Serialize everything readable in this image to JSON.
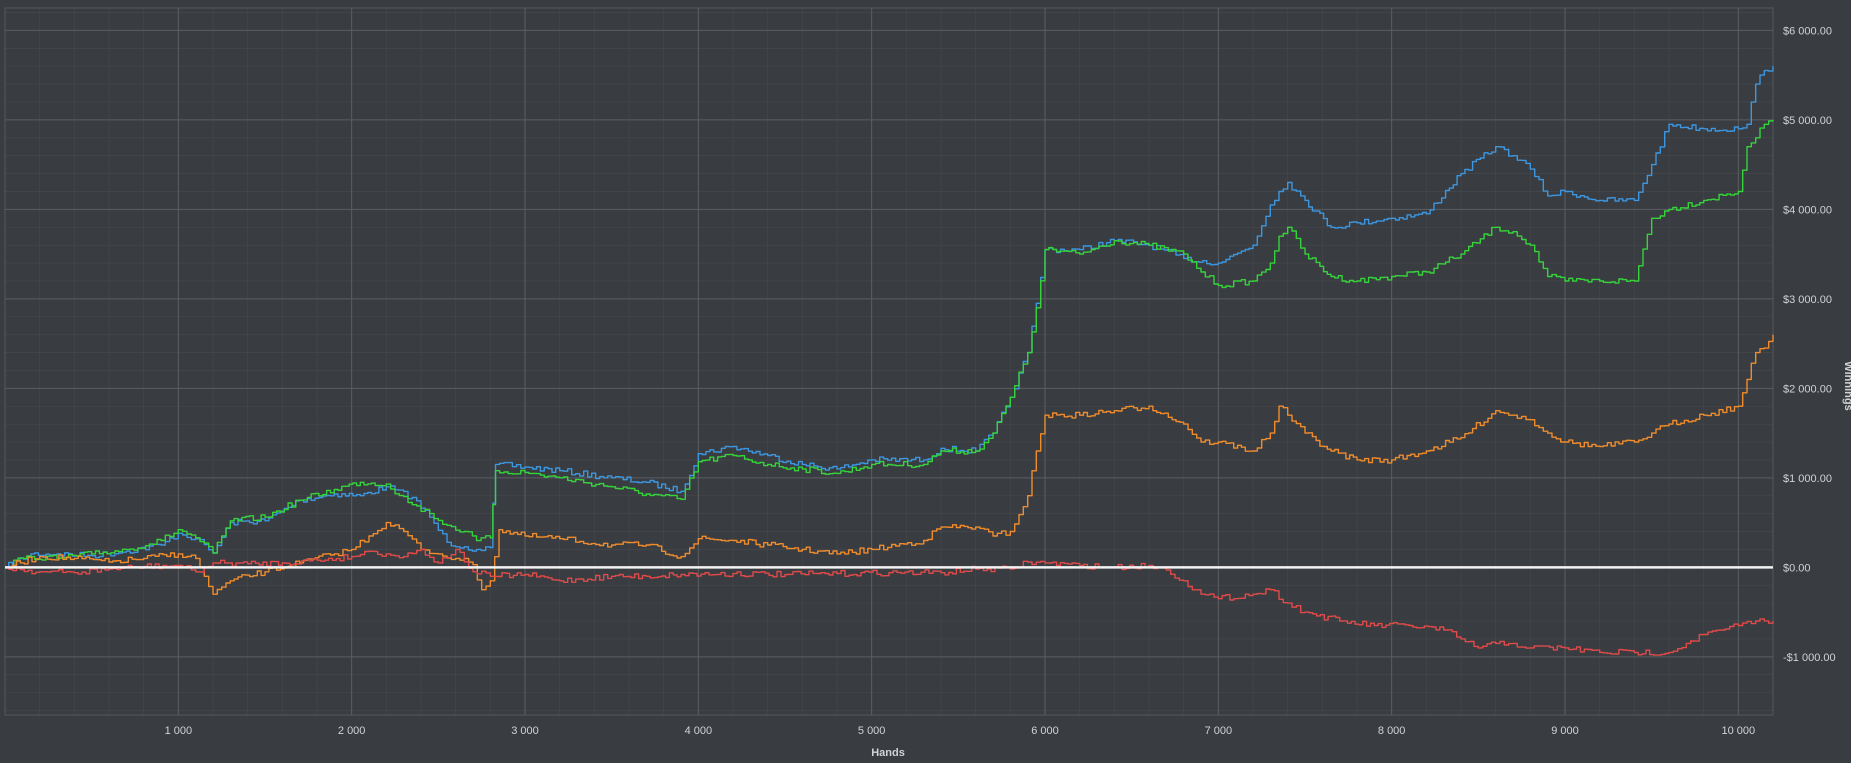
{
  "chart_data": {
    "type": "line",
    "xlabel": "Hands",
    "ylabel": "Winnings",
    "xlim": [
      0,
      10200
    ],
    "ylim": [
      -1650,
      6250
    ],
    "x_ticks": [
      1000,
      2000,
      3000,
      4000,
      5000,
      6000,
      7000,
      8000,
      9000,
      10000
    ],
    "x_tick_labels": [
      "1 000",
      "2 000",
      "3 000",
      "4 000",
      "5 000",
      "6 000",
      "7 000",
      "8 000",
      "9 000",
      "10 000"
    ],
    "y_ticks": [
      -1000,
      0,
      1000,
      2000,
      3000,
      4000,
      5000,
      6000
    ],
    "y_tick_labels": [
      "-$1 000.00",
      "$0.00",
      "$1 000.00",
      "$2 000.00",
      "$3 000.00",
      "$4 000.00",
      "$5 000.00",
      "$6 000.00"
    ],
    "grid": true,
    "legend": "none",
    "colors": {
      "background": "#393c40",
      "zero_line": "#f2f2f2",
      "blue": "#3c96e0",
      "green": "#35d43a",
      "orange": "#f08c2c",
      "red": "#e24a4a"
    },
    "series": [
      {
        "color": "blue",
        "x": [
          0,
          150,
          300,
          500,
          700,
          900,
          1000,
          1100,
          1200,
          1300,
          1500,
          1700,
          1900,
          2050,
          2200,
          2350,
          2450,
          2550,
          2650,
          2720,
          2800,
          2830,
          3000,
          3200,
          3500,
          3700,
          3900,
          4000,
          4200,
          4400,
          4600,
          4800,
          5000,
          5300,
          5400,
          5600,
          5700,
          5800,
          5900,
          5950,
          6000,
          6200,
          6400,
          6600,
          6800,
          7000,
          7200,
          7300,
          7350,
          7400,
          7500,
          7650,
          7800,
          8000,
          8200,
          8400,
          8600,
          8700,
          8800,
          8900,
          9000,
          9200,
          9400,
          9500,
          9600,
          9800,
          10000,
          10050,
          10100,
          10150,
          10200
        ],
        "y": [
          0,
          150,
          150,
          130,
          180,
          250,
          380,
          320,
          160,
          500,
          520,
          750,
          820,
          800,
          900,
          780,
          560,
          280,
          230,
          200,
          220,
          1150,
          1120,
          1080,
          1000,
          950,
          850,
          1270,
          1350,
          1250,
          1150,
          1100,
          1200,
          1200,
          1330,
          1300,
          1500,
          1900,
          2400,
          2950,
          3550,
          3550,
          3650,
          3600,
          3450,
          3400,
          3600,
          4050,
          4200,
          4300,
          4100,
          3800,
          3850,
          3900,
          3950,
          4400,
          4700,
          4600,
          4450,
          4150,
          4200,
          4100,
          4100,
          4500,
          4950,
          4900,
          4900,
          4950,
          5400,
          5550,
          5600
        ]
      },
      {
        "color": "green",
        "x": [
          0,
          100,
          150,
          300,
          500,
          700,
          900,
          1000,
          1100,
          1200,
          1300,
          1500,
          1700,
          1900,
          2050,
          2200,
          2350,
          2450,
          2550,
          2650,
          2720,
          2800,
          2830,
          3000,
          3200,
          3500,
          3700,
          3900,
          4000,
          4200,
          4400,
          4600,
          4800,
          5000,
          5300,
          5400,
          5600,
          5700,
          5800,
          5900,
          5950,
          6000,
          6200,
          6400,
          6600,
          6800,
          6900,
          7000,
          7200,
          7300,
          7350,
          7400,
          7500,
          7650,
          7800,
          8000,
          8200,
          8400,
          8600,
          8700,
          8800,
          8900,
          9000,
          9200,
          9400,
          9500,
          9600,
          9800,
          10000,
          10050,
          10100,
          10150,
          10200
        ],
        "y": [
          0,
          100,
          120,
          100,
          150,
          200,
          300,
          420,
          330,
          160,
          520,
          560,
          750,
          870,
          950,
          930,
          700,
          600,
          470,
          400,
          300,
          330,
          1080,
          1060,
          1000,
          900,
          820,
          760,
          1180,
          1250,
          1150,
          1100,
          1050,
          1150,
          1150,
          1300,
          1300,
          1500,
          1900,
          2400,
          2900,
          3550,
          3500,
          3650,
          3600,
          3500,
          3300,
          3150,
          3200,
          3400,
          3700,
          3800,
          3500,
          3250,
          3200,
          3250,
          3300,
          3500,
          3800,
          3750,
          3600,
          3250,
          3200,
          3200,
          3200,
          3900,
          4000,
          4100,
          4200,
          4700,
          4800,
          4950,
          5000
        ]
      },
      {
        "color": "orange",
        "x": [
          0,
          200,
          400,
          600,
          800,
          1000,
          1100,
          1150,
          1200,
          1300,
          1500,
          1700,
          1900,
          2000,
          2100,
          2200,
          2300,
          2400,
          2500,
          2600,
          2700,
          2750,
          2800,
          2850,
          3000,
          3200,
          3500,
          3700,
          3900,
          4000,
          4200,
          4400,
          4600,
          4800,
          5000,
          5300,
          5400,
          5600,
          5700,
          5800,
          5900,
          5950,
          6000,
          6200,
          6400,
          6600,
          6800,
          6900,
          7000,
          7200,
          7300,
          7350,
          7400,
          7500,
          7650,
          7800,
          8000,
          8200,
          8400,
          8600,
          8700,
          8800,
          8900,
          9000,
          9200,
          9400,
          9500,
          9600,
          9800,
          10000,
          10050,
          10100,
          10150,
          10200
        ],
        "y": [
          0,
          120,
          100,
          60,
          100,
          150,
          100,
          -100,
          -300,
          -150,
          -50,
          50,
          150,
          200,
          350,
          500,
          400,
          200,
          150,
          100,
          30,
          -250,
          -150,
          420,
          350,
          320,
          250,
          250,
          120,
          320,
          300,
          250,
          200,
          150,
          200,
          300,
          450,
          450,
          350,
          400,
          800,
          1300,
          1700,
          1700,
          1750,
          1800,
          1600,
          1400,
          1400,
          1300,
          1500,
          1800,
          1700,
          1500,
          1300,
          1200,
          1200,
          1300,
          1450,
          1750,
          1700,
          1650,
          1500,
          1400,
          1350,
          1400,
          1500,
          1600,
          1700,
          1800,
          2100,
          2400,
          2450,
          2600
        ]
      },
      {
        "color": "red",
        "x": [
          0,
          200,
          400,
          600,
          800,
          1000,
          1100,
          1200,
          1400,
          1600,
          1800,
          2000,
          2100,
          2200,
          2300,
          2400,
          2500,
          2600,
          2700,
          2800,
          3000,
          3200,
          3500,
          3700,
          3900,
          4200,
          4500,
          4800,
          5100,
          5400,
          5600,
          5800,
          5900,
          6000,
          6200,
          6400,
          6600,
          6700,
          6800,
          6900,
          7000,
          7200,
          7300,
          7400,
          7500,
          7700,
          7900,
          8100,
          8300,
          8400,
          8500,
          8600,
          8700,
          8800,
          9000,
          9200,
          9400,
          9600,
          9700,
          9800,
          9900,
          10000,
          10100,
          10200
        ],
        "y": [
          0,
          -50,
          -60,
          -20,
          10,
          20,
          -50,
          50,
          40,
          50,
          80,
          120,
          180,
          150,
          120,
          200,
          50,
          200,
          -50,
          -100,
          -80,
          -150,
          -100,
          -100,
          -80,
          -70,
          -80,
          -70,
          -60,
          -60,
          -20,
          -20,
          60,
          50,
          20,
          0,
          20,
          -30,
          -150,
          -300,
          -350,
          -300,
          -250,
          -400,
          -500,
          -600,
          -650,
          -650,
          -700,
          -800,
          -900,
          -850,
          -850,
          -900,
          -900,
          -950,
          -950,
          -950,
          -850,
          -750,
          -700,
          -650,
          -600,
          -600
        ]
      }
    ]
  }
}
